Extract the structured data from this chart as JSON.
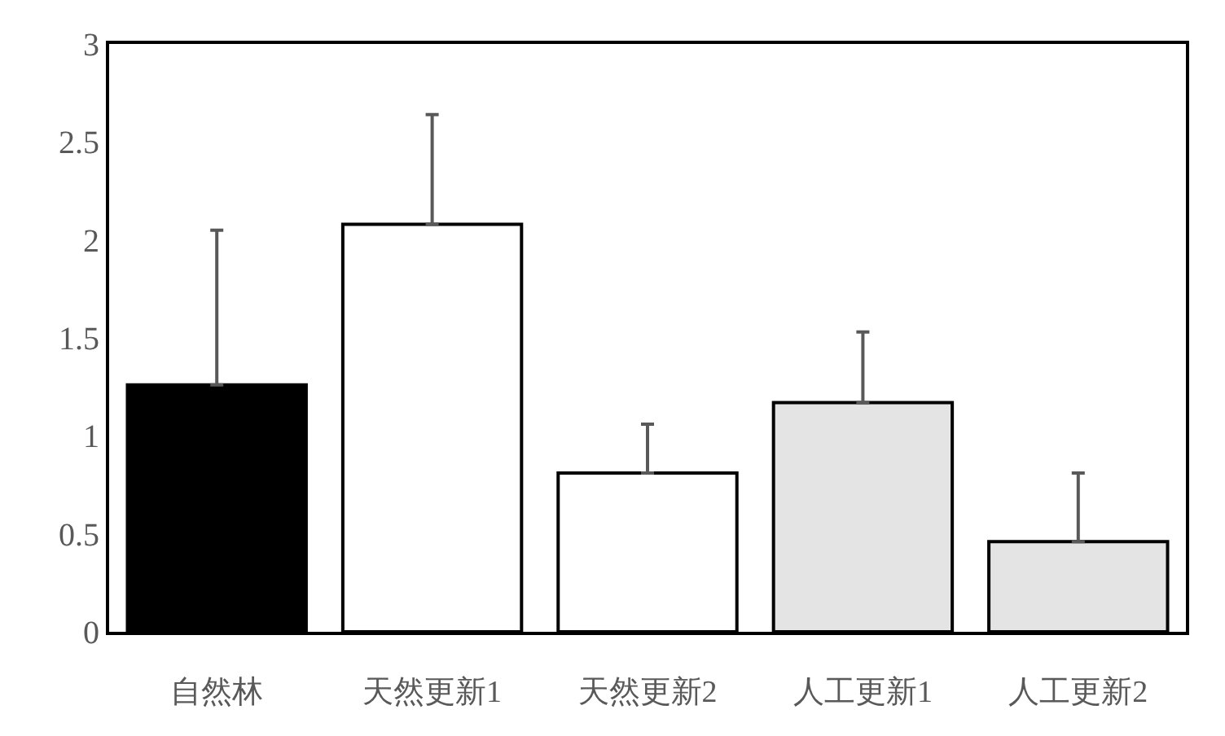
{
  "chart_data": {
    "type": "bar",
    "categories": [
      "自然林",
      "天然更新1",
      "天然更新2",
      "人工更新1",
      "人工更新2"
    ],
    "values": [
      1.26,
      2.08,
      0.81,
      1.17,
      0.46
    ],
    "colors": [
      "#000000",
      "#ffffff",
      "#ffffff",
      "#e4e4e4",
      "#e4e4e4"
    ],
    "errors": [
      [
        1.26,
        2.05
      ],
      [
        2.08,
        2.64
      ],
      [
        0.81,
        1.06
      ],
      [
        1.17,
        1.53
      ],
      [
        0.46,
        0.81
      ]
    ],
    "ylim": [
      0,
      3
    ],
    "yticks": [
      0,
      0.5,
      1,
      1.5,
      2,
      2.5,
      3
    ]
  }
}
